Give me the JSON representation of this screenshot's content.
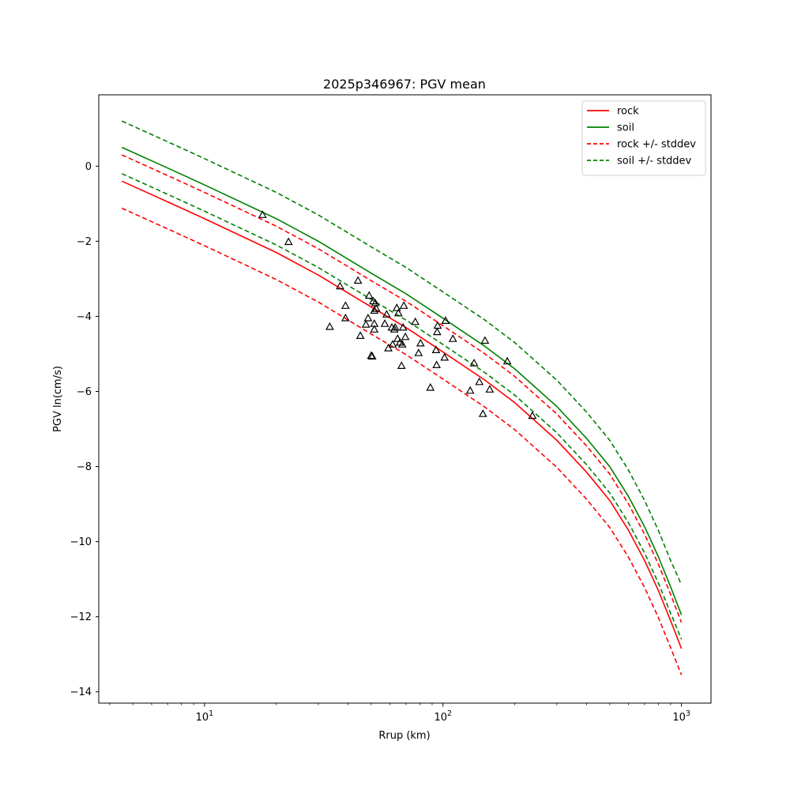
{
  "chart_data": {
    "type": "line",
    "title": "2025p346967: PGV mean",
    "xlabel": "Rrup (km)",
    "ylabel": "PGV ln(cm/s)",
    "xscale": "log",
    "xlim": [
      3.6,
      1330
    ],
    "ylim": [
      -14.3,
      1.9
    ],
    "grid": false,
    "legend_position": "top-right",
    "x_major_ticks": [
      {
        "value": 10,
        "label_base": "10",
        "label_exp": "1"
      },
      {
        "value": 100,
        "label_base": "10",
        "label_exp": "2"
      },
      {
        "value": 1000,
        "label_base": "10",
        "label_exp": "3"
      }
    ],
    "y_ticks": [
      {
        "value": 0,
        "label": "0"
      },
      {
        "value": -2,
        "label": "−2"
      },
      {
        "value": -4,
        "label": "−4"
      },
      {
        "value": -6,
        "label": "−6"
      },
      {
        "value": -8,
        "label": "−8"
      },
      {
        "value": -10,
        "label": "−10"
      },
      {
        "value": -12,
        "label": "−12"
      },
      {
        "value": -14,
        "label": "−14"
      }
    ],
    "x": [
      4.5,
      7,
      10,
      20,
      30,
      50,
      70,
      100,
      150,
      200,
      300,
      400,
      500,
      600,
      700,
      800,
      900,
      1000
    ],
    "series": [
      {
        "name": "rock",
        "color": "#ff0000",
        "dash": false,
        "values": [
          -0.4,
          -0.95,
          -1.4,
          -2.3,
          -2.9,
          -3.75,
          -4.3,
          -4.95,
          -5.7,
          -6.3,
          -7.3,
          -8.15,
          -8.9,
          -9.7,
          -10.5,
          -11.3,
          -12.1,
          -12.85
        ]
      },
      {
        "name": "soil",
        "color": "#008000",
        "dash": false,
        "values": [
          0.5,
          -0.05,
          -0.5,
          -1.4,
          -2.0,
          -2.85,
          -3.4,
          -4.05,
          -4.8,
          -5.4,
          -6.4,
          -7.25,
          -8.0,
          -8.8,
          -9.6,
          -10.4,
          -11.2,
          -11.95
        ]
      },
      {
        "name": "rock +/- stddev",
        "color": "#ff0000",
        "dash": true,
        "values": [
          0.3,
          -0.25,
          -0.7,
          -1.6,
          -2.2,
          -3.05,
          -3.6,
          -4.25,
          -5.0,
          -5.6,
          -6.6,
          -7.45,
          -8.2,
          -9.0,
          -9.8,
          -10.6,
          -11.4,
          -12.15
        ]
      },
      {
        "name": "",
        "color": "#ff0000",
        "dash": true,
        "values": [
          -1.12,
          -1.67,
          -2.12,
          -3.02,
          -3.62,
          -4.47,
          -5.02,
          -5.67,
          -6.42,
          -7.02,
          -8.02,
          -8.87,
          -9.62,
          -10.42,
          -11.22,
          -12.02,
          -12.82,
          -13.55
        ]
      },
      {
        "name": "soil +/- stddev",
        "color": "#008000",
        "dash": true,
        "values": [
          1.2,
          0.65,
          0.2,
          -0.7,
          -1.3,
          -2.15,
          -2.7,
          -3.35,
          -4.1,
          -4.7,
          -5.7,
          -6.55,
          -7.3,
          -8.1,
          -8.9,
          -9.7,
          -10.5,
          -11.15
        ]
      },
      {
        "name": "",
        "color": "#008000",
        "dash": true,
        "values": [
          -0.2,
          -0.75,
          -1.2,
          -2.1,
          -2.7,
          -3.55,
          -4.1,
          -4.75,
          -5.5,
          -6.1,
          -7.1,
          -7.95,
          -8.7,
          -9.5,
          -10.3,
          -11.1,
          -11.9,
          -12.6
        ]
      }
    ],
    "scatter": {
      "marker": "open-triangle",
      "color": "#000000",
      "points": [
        [
          17.5,
          -1.3
        ],
        [
          22.5,
          -2.02
        ],
        [
          33.5,
          -4.28
        ],
        [
          37,
          -3.2
        ],
        [
          39,
          -3.72
        ],
        [
          39,
          -4.05
        ],
        [
          44,
          -3.05
        ],
        [
          45,
          -4.52
        ],
        [
          47.5,
          -4.22
        ],
        [
          48.5,
          -4.05
        ],
        [
          49,
          -3.45
        ],
        [
          50,
          -5.05
        ],
        [
          50.5,
          -5.07
        ],
        [
          51,
          -3.6
        ],
        [
          51.5,
          -3.85
        ],
        [
          51.5,
          -4.2
        ],
        [
          51.5,
          -4.35
        ],
        [
          52,
          -3.65
        ],
        [
          52.5,
          -3.8
        ],
        [
          57,
          -4.2
        ],
        [
          58,
          -3.95
        ],
        [
          59,
          -4.85
        ],
        [
          61,
          -4.3
        ],
        [
          61.5,
          -4.75
        ],
        [
          62.5,
          -4.35
        ],
        [
          63,
          -4.3
        ],
        [
          64,
          -3.78
        ],
        [
          64.5,
          -4.6
        ],
        [
          65,
          -3.92
        ],
        [
          66,
          -4.7
        ],
        [
          67,
          -5.32
        ],
        [
          67.5,
          -4.75
        ],
        [
          68,
          -4.3
        ],
        [
          68.5,
          -3.72
        ],
        [
          69.5,
          -4.55
        ],
        [
          76.5,
          -4.15
        ],
        [
          79,
          -4.98
        ],
        [
          80.5,
          -4.72
        ],
        [
          88.5,
          -5.9
        ],
        [
          93.5,
          -4.9
        ],
        [
          94,
          -5.3
        ],
        [
          94.5,
          -4.42
        ],
        [
          95,
          -4.25
        ],
        [
          101.5,
          -5.1
        ],
        [
          102.5,
          -4.12
        ],
        [
          110,
          -4.6
        ],
        [
          130,
          -5.98
        ],
        [
          135,
          -5.25
        ],
        [
          142,
          -5.75
        ],
        [
          147,
          -6.6
        ],
        [
          150,
          -4.65
        ],
        [
          157,
          -5.95
        ],
        [
          186,
          -5.2
        ],
        [
          237,
          -6.65
        ]
      ]
    }
  }
}
